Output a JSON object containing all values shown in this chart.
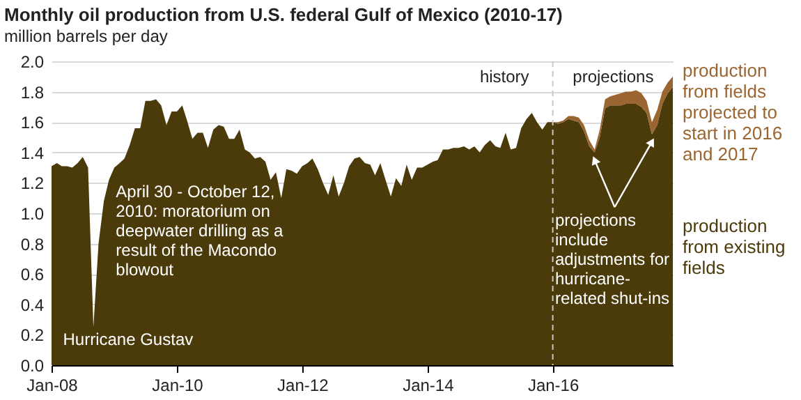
{
  "chart_data": {
    "type": "area",
    "stacked": true,
    "title": "Monthly oil production from U.S. federal Gulf of Mexico (2010-17)",
    "subtitle": "million barrels per day",
    "x": [
      "2008-01",
      "2008-02",
      "2008-03",
      "2008-04",
      "2008-05",
      "2008-06",
      "2008-07",
      "2008-08",
      "2008-09",
      "2008-10",
      "2008-11",
      "2008-12",
      "2009-01",
      "2009-02",
      "2009-03",
      "2009-04",
      "2009-05",
      "2009-06",
      "2009-07",
      "2009-08",
      "2009-09",
      "2009-10",
      "2009-11",
      "2009-12",
      "2010-01",
      "2010-02",
      "2010-03",
      "2010-04",
      "2010-05",
      "2010-06",
      "2010-07",
      "2010-08",
      "2010-09",
      "2010-10",
      "2010-11",
      "2010-12",
      "2011-01",
      "2011-02",
      "2011-03",
      "2011-04",
      "2011-05",
      "2011-06",
      "2011-07",
      "2011-08",
      "2011-09",
      "2011-10",
      "2011-11",
      "2011-12",
      "2012-01",
      "2012-02",
      "2012-03",
      "2012-04",
      "2012-05",
      "2012-06",
      "2012-07",
      "2012-08",
      "2012-09",
      "2012-10",
      "2012-11",
      "2012-12",
      "2013-01",
      "2013-02",
      "2013-03",
      "2013-04",
      "2013-05",
      "2013-06",
      "2013-07",
      "2013-08",
      "2013-09",
      "2013-10",
      "2013-11",
      "2013-12",
      "2014-01",
      "2014-02",
      "2014-03",
      "2014-04",
      "2014-05",
      "2014-06",
      "2014-07",
      "2014-08",
      "2014-09",
      "2014-10",
      "2014-11",
      "2014-12",
      "2015-01",
      "2015-02",
      "2015-03",
      "2015-04",
      "2015-05",
      "2015-06",
      "2015-07",
      "2015-08",
      "2015-09",
      "2015-10",
      "2015-11",
      "2015-12",
      "2016-01",
      "2016-02",
      "2016-03",
      "2016-04",
      "2016-05",
      "2016-06",
      "2016-07",
      "2016-08",
      "2016-09",
      "2016-10",
      "2016-11",
      "2016-12",
      "2017-01",
      "2017-02",
      "2017-03",
      "2017-04",
      "2017-05",
      "2017-06",
      "2017-07",
      "2017-08",
      "2017-09",
      "2017-10",
      "2017-11",
      "2017-12"
    ],
    "series": [
      {
        "name": "production from existing fields",
        "color": "#4b3a0a",
        "values": [
          1.31,
          1.33,
          1.31,
          1.31,
          1.3,
          1.33,
          1.37,
          1.3,
          0.25,
          0.8,
          1.08,
          1.22,
          1.3,
          1.33,
          1.36,
          1.45,
          1.56,
          1.56,
          1.74,
          1.74,
          1.75,
          1.71,
          1.58,
          1.67,
          1.67,
          1.71,
          1.61,
          1.49,
          1.53,
          1.53,
          1.43,
          1.55,
          1.58,
          1.57,
          1.49,
          1.49,
          1.55,
          1.42,
          1.4,
          1.36,
          1.37,
          1.34,
          1.22,
          1.27,
          1.1,
          1.29,
          1.28,
          1.26,
          1.31,
          1.33,
          1.36,
          1.29,
          1.2,
          1.12,
          1.25,
          1.11,
          1.2,
          1.31,
          1.36,
          1.37,
          1.33,
          1.32,
          1.25,
          1.33,
          1.22,
          1.11,
          1.23,
          1.18,
          1.32,
          1.22,
          1.3,
          1.3,
          1.32,
          1.34,
          1.35,
          1.42,
          1.42,
          1.43,
          1.43,
          1.44,
          1.42,
          1.44,
          1.4,
          1.45,
          1.48,
          1.44,
          1.43,
          1.53,
          1.42,
          1.43,
          1.56,
          1.62,
          1.66,
          1.6,
          1.55,
          1.6,
          1.6,
          1.59,
          1.6,
          1.62,
          1.61,
          1.6,
          1.54,
          1.44,
          1.4,
          1.5,
          1.69,
          1.71,
          1.71,
          1.71,
          1.72,
          1.72,
          1.72,
          1.7,
          1.66,
          1.52,
          1.58,
          1.72,
          1.79,
          1.83
        ]
      },
      {
        "name": "production from fields projected to start in 2016 and 2017",
        "color": "#9a6530",
        "values": [
          null,
          null,
          null,
          null,
          null,
          null,
          null,
          null,
          null,
          null,
          null,
          null,
          null,
          null,
          null,
          null,
          null,
          null,
          null,
          null,
          null,
          null,
          null,
          null,
          null,
          null,
          null,
          null,
          null,
          null,
          null,
          null,
          null,
          null,
          null,
          null,
          null,
          null,
          null,
          null,
          null,
          null,
          null,
          null,
          null,
          null,
          null,
          null,
          null,
          null,
          null,
          null,
          null,
          null,
          null,
          null,
          null,
          null,
          null,
          null,
          null,
          null,
          null,
          null,
          null,
          null,
          null,
          null,
          null,
          null,
          null,
          null,
          null,
          null,
          null,
          null,
          null,
          null,
          null,
          null,
          null,
          null,
          null,
          null,
          null,
          null,
          null,
          null,
          null,
          null,
          null,
          null,
          null,
          null,
          null,
          null,
          0,
          0.01,
          0.01,
          0.02,
          0.03,
          0.03,
          0.04,
          0.04,
          0.02,
          0.05,
          0.06,
          0.06,
          0.07,
          0.08,
          0.08,
          0.08,
          0.09,
          0.09,
          0.08,
          0.08,
          0.1,
          0.08,
          0.07,
          0.07
        ]
      }
    ],
    "xlim": [
      "2008-01",
      "2017-12"
    ],
    "xticks": [
      {
        "value": "2008-01",
        "label": "Jan-08"
      },
      {
        "value": "2010-01",
        "label": "Jan-10"
      },
      {
        "value": "2012-01",
        "label": "Jan-12"
      },
      {
        "value": "2014-01",
        "label": "Jan-14"
      },
      {
        "value": "2016-01",
        "label": "Jan-16"
      }
    ],
    "ylim": [
      0,
      2
    ],
    "yticks": [
      {
        "value": 0,
        "label": "0.0"
      },
      {
        "value": 0.2,
        "label": "0.2"
      },
      {
        "value": 0.4,
        "label": "0.4"
      },
      {
        "value": 0.6,
        "label": "0.6"
      },
      {
        "value": 0.8,
        "label": "0.8"
      },
      {
        "value": 1,
        "label": "1.0"
      },
      {
        "value": 1.2,
        "label": "1.2"
      },
      {
        "value": 1.4,
        "label": "1.4"
      },
      {
        "value": 1.6,
        "label": "1.6"
      },
      {
        "value": 1.8,
        "label": "1.8"
      },
      {
        "value": 2,
        "label": "2.0"
      }
    ],
    "grid": "y",
    "legend": false,
    "ref_lines": [
      {
        "axis": "x",
        "value": "2016-01",
        "label": null,
        "color": "#c8c8c8",
        "line_style": "dashed"
      }
    ],
    "annotations": [
      "history",
      "projections",
      "April 30 - October 12, 2010: moratorium on deepwater drilling as a result of the Macondo blowout",
      "Hurricane Gustav",
      "projections include adjustments for hurricane-related shut-ins"
    ]
  }
}
